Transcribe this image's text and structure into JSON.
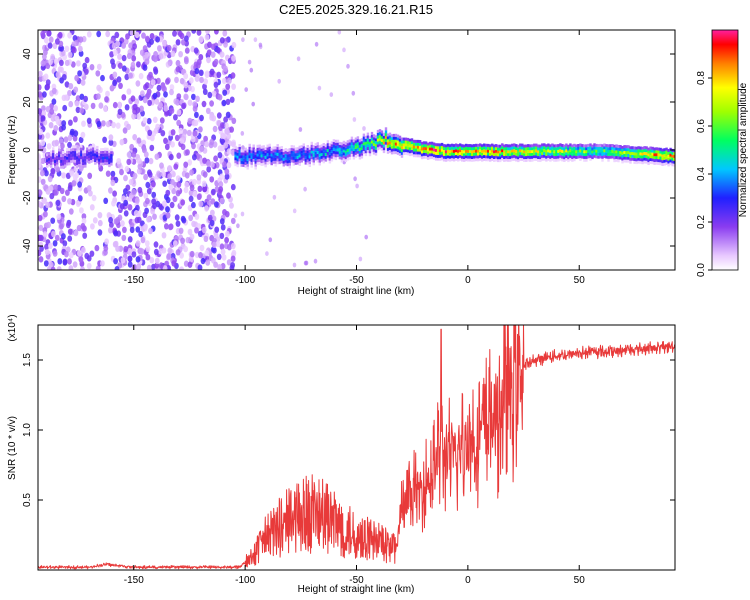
{
  "title": "C2E5.2025.329.16.21.R15",
  "chart_data": [
    {
      "type": "heatmap",
      "title": "C2E5.2025.329.16.21.R15",
      "xlabel": "Height of straight line (km)",
      "ylabel": "Frequency (Hz)",
      "xlim": [
        -193,
        93
      ],
      "ylim": [
        -50,
        50
      ],
      "xticks": [
        -150,
        -100,
        -50,
        0,
        50
      ],
      "xtick_labels": [
        "-150",
        "-100",
        "-50",
        "0",
        "50"
      ],
      "yticks": [
        -40,
        -20,
        0,
        20,
        40
      ],
      "ytick_labels": [
        "-40",
        "-20",
        "0",
        "20",
        "40"
      ],
      "colorbar": {
        "label": "Normalized spectral amplitude",
        "range": [
          0,
          1
        ],
        "ticks": [
          0.0,
          0.2,
          0.4,
          0.6,
          0.8
        ],
        "tick_labels": [
          "0.0",
          "0.2",
          "0.4",
          "0.6",
          "0.8"
        ]
      },
      "ridge": {
        "description_x": [
          -193,
          -160,
          -105,
          -80,
          -60,
          -45,
          -38,
          -30,
          -20,
          -10,
          0,
          10,
          30,
          60,
          93
        ],
        "frequency_hz": [
          -3,
          -2,
          -2,
          -2,
          0,
          3,
          5,
          3,
          1,
          0,
          0,
          0,
          0,
          0,
          -2
        ],
        "peak_amplitude": [
          0.25,
          0.35,
          0.4,
          0.4,
          0.45,
          0.6,
          0.75,
          0.85,
          0.9,
          0.9,
          0.85,
          0.85,
          0.75,
          0.6,
          0.9
        ]
      },
      "noise_region_x": [
        -193,
        -105
      ]
    },
    {
      "type": "line",
      "xlabel": "Height of straight line (km)",
      "ylabel": "SNR (10 * v/v)",
      "y_multiplier": "(x10⁴)",
      "xlim": [
        -193,
        93
      ],
      "ylim": [
        0,
        1.75
      ],
      "xticks": [
        -150,
        -100,
        -50,
        0,
        50
      ],
      "xtick_labels": [
        "-150",
        "-100",
        "-50",
        "0",
        "50"
      ],
      "yticks": [
        0.5,
        1.0,
        1.5
      ],
      "ytick_labels": [
        "0.5",
        "1.0",
        "1.5"
      ],
      "color": "#e83a3a",
      "series": [
        {
          "name": "SNR",
          "x": [
            -193,
            -170,
            -163,
            -150,
            -120,
            -103,
            -100,
            -95,
            -90,
            -80,
            -70,
            -60,
            -55,
            -50,
            -45,
            -40,
            -35,
            -32,
            -30,
            -25,
            -20,
            -15,
            -12,
            -10,
            -5,
            0,
            5,
            10,
            15,
            20,
            25,
            30,
            40,
            50,
            60,
            70,
            80,
            93
          ],
          "y": [
            0.02,
            0.02,
            0.04,
            0.02,
            0.02,
            0.02,
            0.05,
            0.12,
            0.22,
            0.32,
            0.38,
            0.3,
            0.26,
            0.22,
            0.2,
            0.18,
            0.16,
            0.15,
            0.42,
            0.55,
            0.6,
            0.72,
            0.85,
            0.82,
            0.8,
            0.92,
            0.98,
            1.05,
            1.18,
            1.35,
            1.45,
            1.5,
            1.53,
            1.55,
            1.56,
            1.57,
            1.58,
            1.6
          ]
        }
      ],
      "spike": {
        "x": -12,
        "y": 1.72
      }
    }
  ]
}
